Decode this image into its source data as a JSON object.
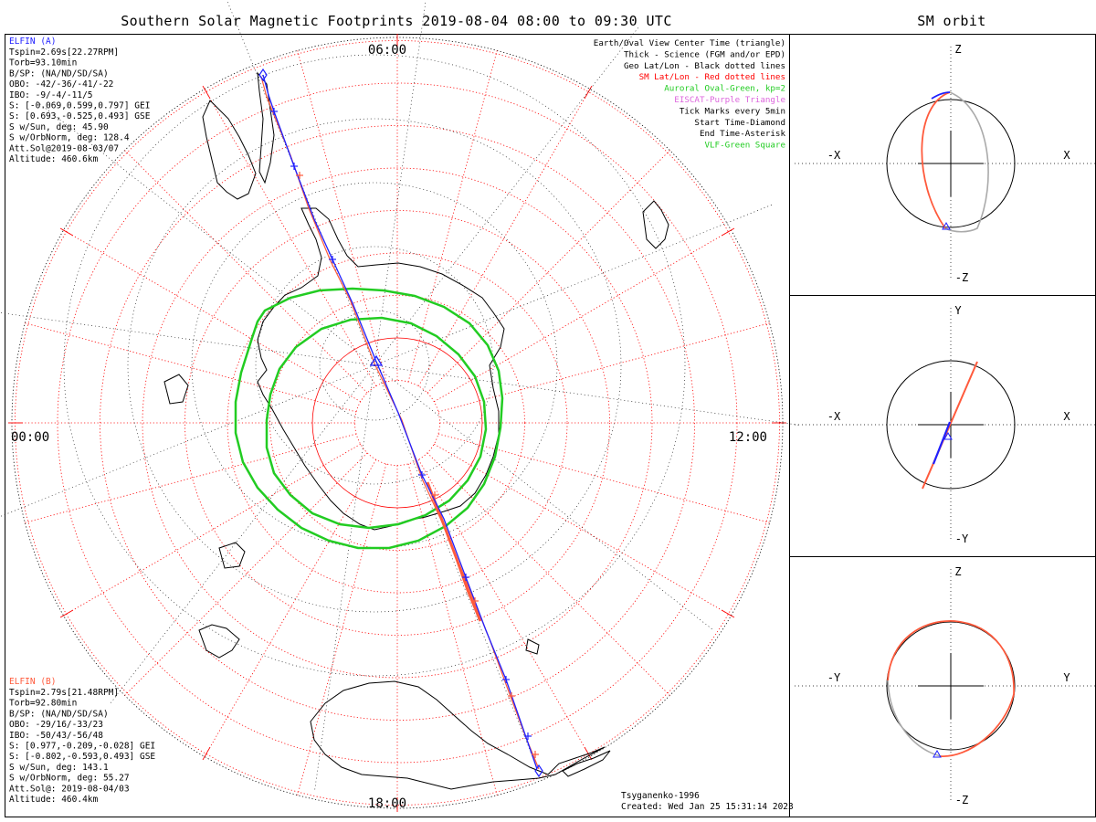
{
  "title": "Southern Solar Magnetic Footprints 2019-08-04 08:00 to 09:30 UTC",
  "orbit_title": "SM orbit",
  "mlt_labels": {
    "top": "06:00",
    "left": "00:00",
    "right": "12:00",
    "bottom": "18:00"
  },
  "elfin_a": {
    "name": "ELFIN (A)",
    "lines": [
      "Tspin=2.69s[22.27RPM]",
      "Torb=93.10min",
      "B/SP: (NA/ND/SD/SA)",
      "OBO: -42/-36/-41/-22",
      "IBO: -9/-4/-11/5",
      "S: [-0.069,0.599,0.797] GEI",
      "S: [0.693,-0.525,0.493] GSE",
      "S w/Sun, deg: 45.90",
      "S w/OrbNorm, deg: 128.4",
      "Att.Sol@2019-08-03/07",
      "Altitude: 460.6km"
    ]
  },
  "elfin_b": {
    "name": "ELFIN (B)",
    "lines": [
      "Tspin=2.79s[21.48RPM]",
      "Torb=92.80min",
      "B/SP: (NA/ND/SD/SA)",
      "OBO: -29/16/-33/23",
      "IBO: -50/43/-56/48",
      "S: [0.977,-0.209,-0.028] GEI",
      "S: [-0.802,-0.593,0.493] GSE",
      "S w/Sun, deg: 143.1",
      "S w/OrbNorm, deg: 55.27",
      "Att.Sol@: 2019-08-04/03",
      "Altitude: 460.4km"
    ]
  },
  "legend": [
    {
      "text": "Earth/Oval View Center Time (triangle)",
      "color": "#000000"
    },
    {
      "text": "Thick - Science (FGM and/or EPD)",
      "color": "#000000"
    },
    {
      "text": "Geo Lat/Lon - Black dotted lines",
      "color": "#000000"
    },
    {
      "text": "SM Lat/Lon - Red dotted lines",
      "color": "#ff0000"
    },
    {
      "text": "Auroral Oval-Green, kp=2",
      "color": "#22cc22"
    },
    {
      "text": "EISCAT-Purple Triangle",
      "color": "#dd66dd"
    },
    {
      "text": "Tick Marks every 5min",
      "color": "#000000"
    },
    {
      "text": "Start Time-Diamond",
      "color": "#000000"
    },
    {
      "text": "End Time-Asterisk",
      "color": "#000000"
    },
    {
      "text": "VLF-Green Square",
      "color": "#22cc22"
    }
  ],
  "footer": {
    "model": "Tsyganenko-1996",
    "created": "Created: Wed Jan 25 15:31:14 2023"
  },
  "orbit_panels": [
    {
      "top": "Z",
      "bottom": "-Z",
      "left": "-X",
      "right": "X"
    },
    {
      "top": "Y",
      "bottom": "-Y",
      "left": "-X",
      "right": "X"
    },
    {
      "top": "Z",
      "bottom": "-Z",
      "left": "-Y",
      "right": "Y"
    }
  ],
  "colors": {
    "elfin_a": "#2020ff",
    "elfin_b": "#ff5a3c",
    "oval": "#22cc22",
    "sm_grid": "#ff0000",
    "geo": "#000000"
  }
}
